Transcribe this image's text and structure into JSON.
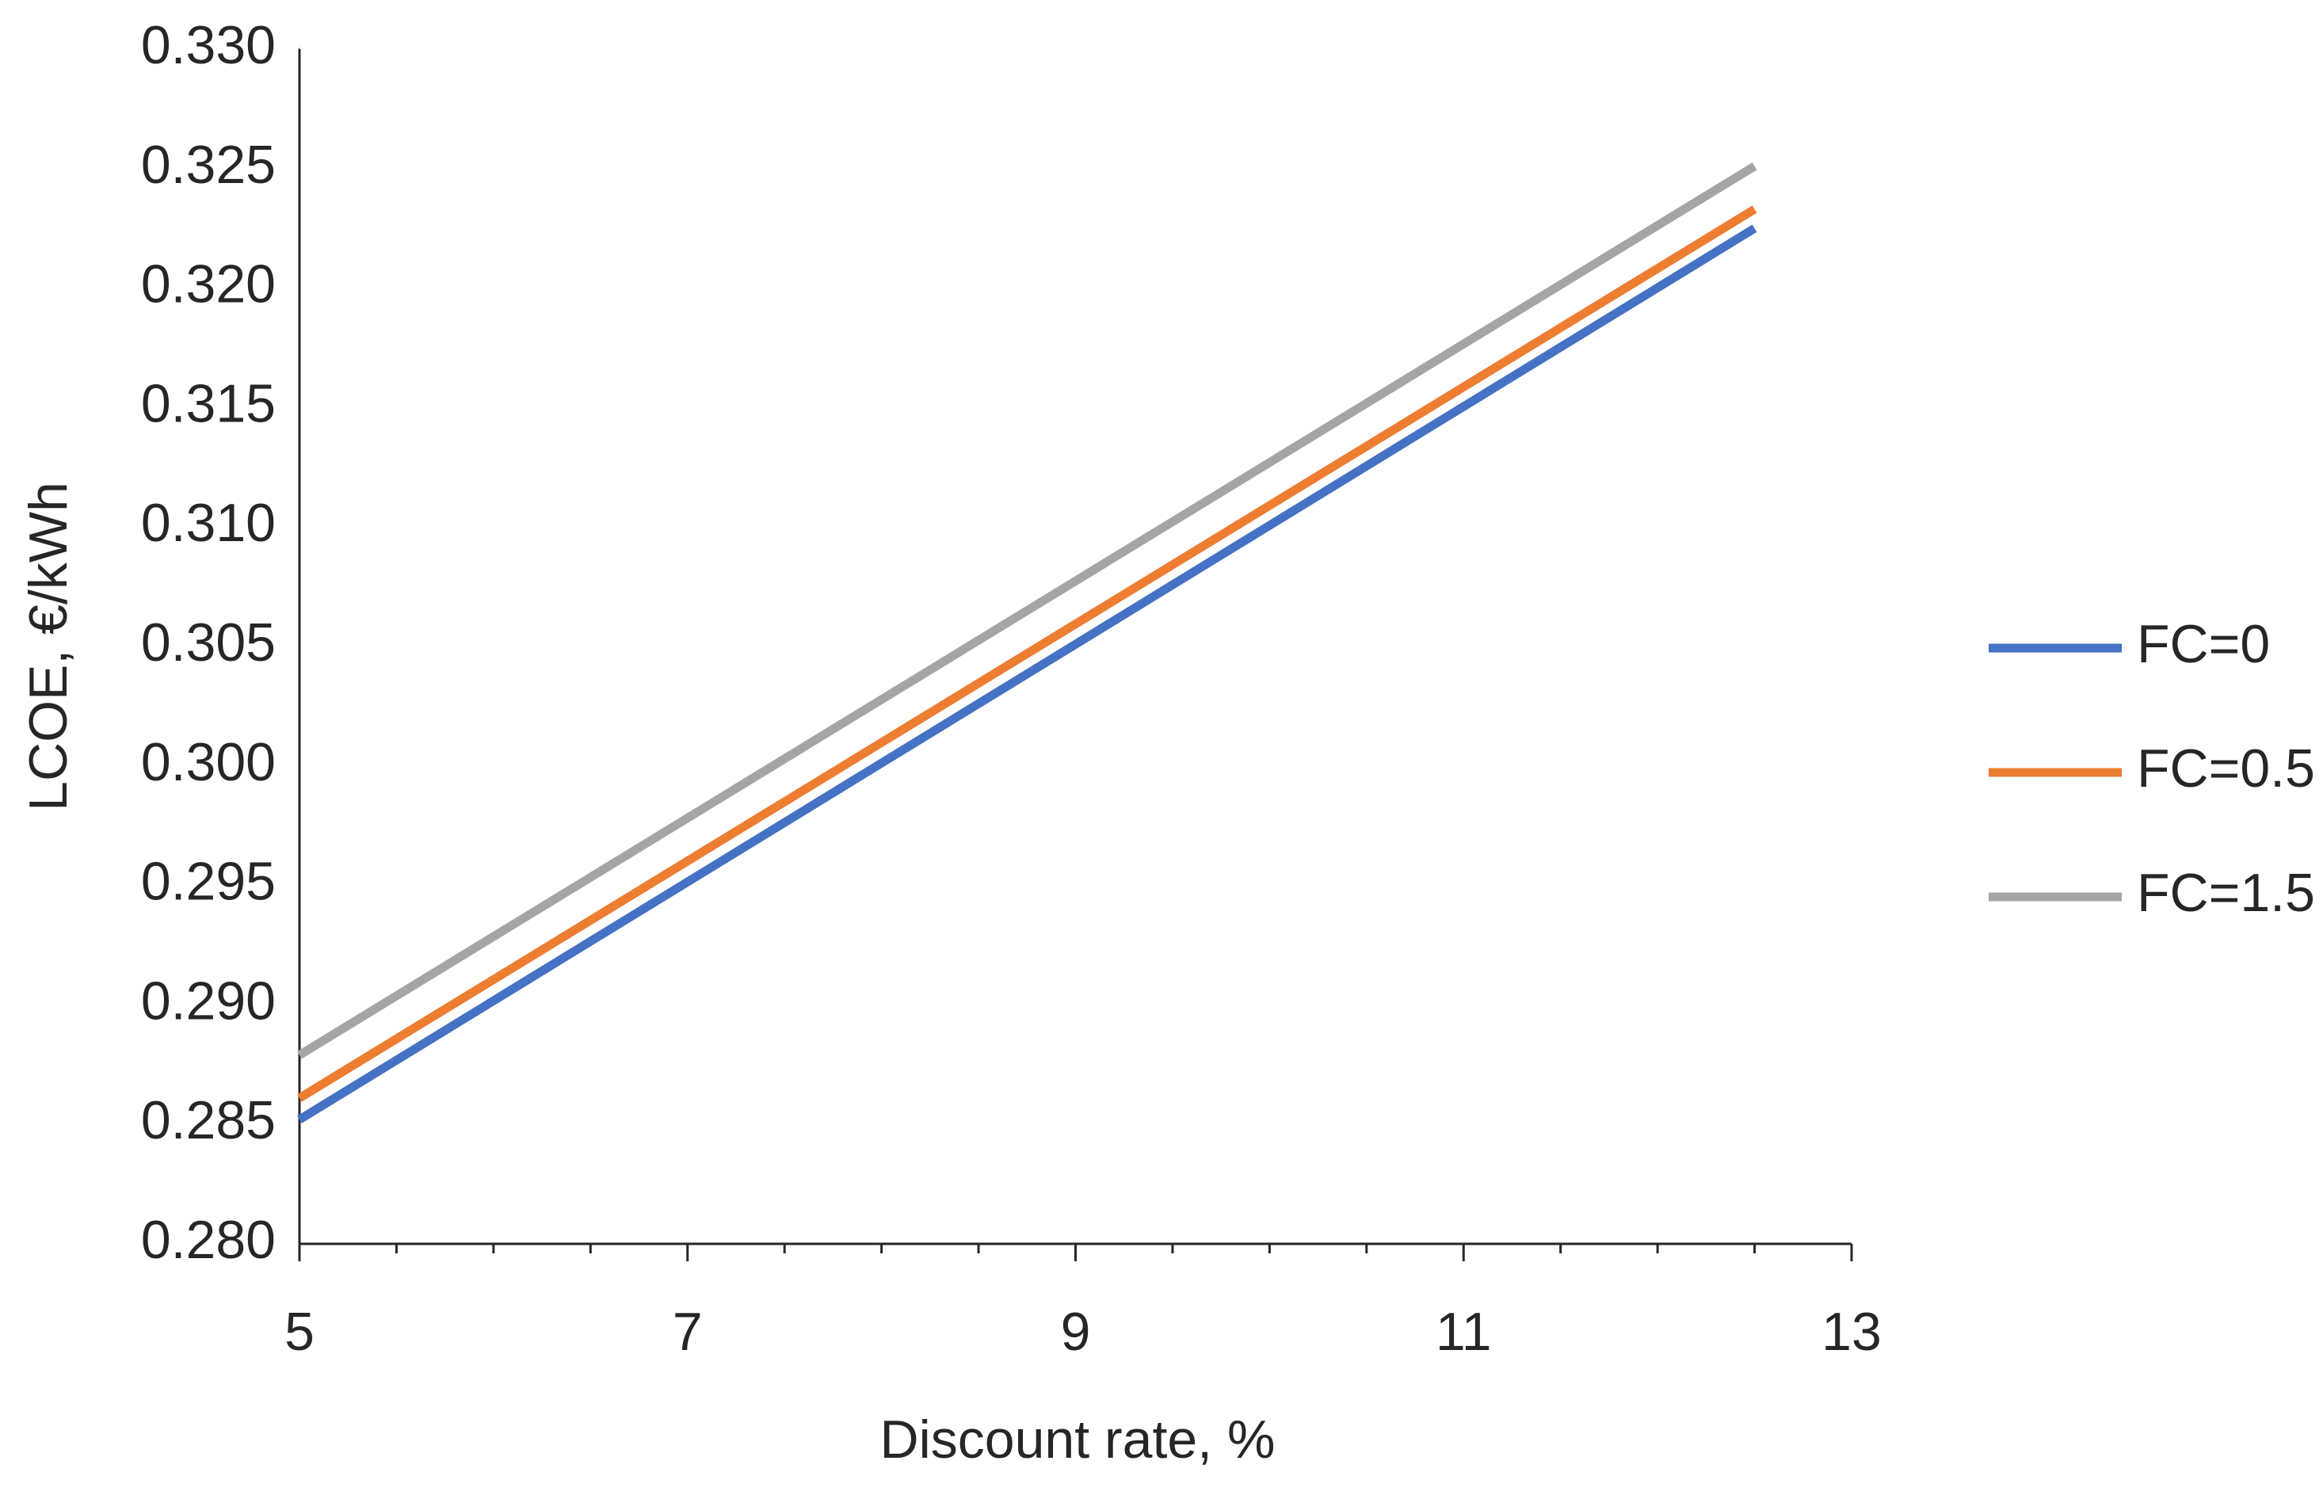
{
  "chart_data": {
    "type": "line",
    "x_label": "Discount rate, %",
    "y_label": "LCOE, €/kWh",
    "x": [
      5,
      12.5
    ],
    "series": [
      {
        "name": "FC=0",
        "color": "#4472c4",
        "values": [
          0.2852,
          0.3225
        ]
      },
      {
        "name": "FC=0.5",
        "color": "#ed7d31",
        "values": [
          0.2861,
          0.3233
        ]
      },
      {
        "name": "FC=1.5",
        "color": "#a5a5a5",
        "values": [
          0.2879,
          0.3251
        ]
      }
    ],
    "xlim": [
      5,
      13
    ],
    "xticks": [
      5,
      7,
      9,
      11,
      13
    ],
    "xminorticks": [
      5.5,
      6,
      6.5,
      7.5,
      8,
      8.5,
      9.5,
      10,
      10.5,
      11.5,
      12,
      12.5
    ],
    "ylim": [
      0.28,
      0.33
    ],
    "yticks": [
      {
        "value": 0.28,
        "label": "0.280"
      },
      0.285,
      {
        "value": 0.29,
        "label": "0.290"
      },
      0.295,
      {
        "value": 0.3,
        "label": "0.300"
      },
      0.305,
      {
        "value": 0.31,
        "label": "0.310"
      },
      0.315,
      {
        "value": 0.32,
        "label": "0.320"
      },
      0.325,
      {
        "value": 0.33,
        "label": "0.330"
      }
    ],
    "grid": false,
    "legend": "right"
  }
}
